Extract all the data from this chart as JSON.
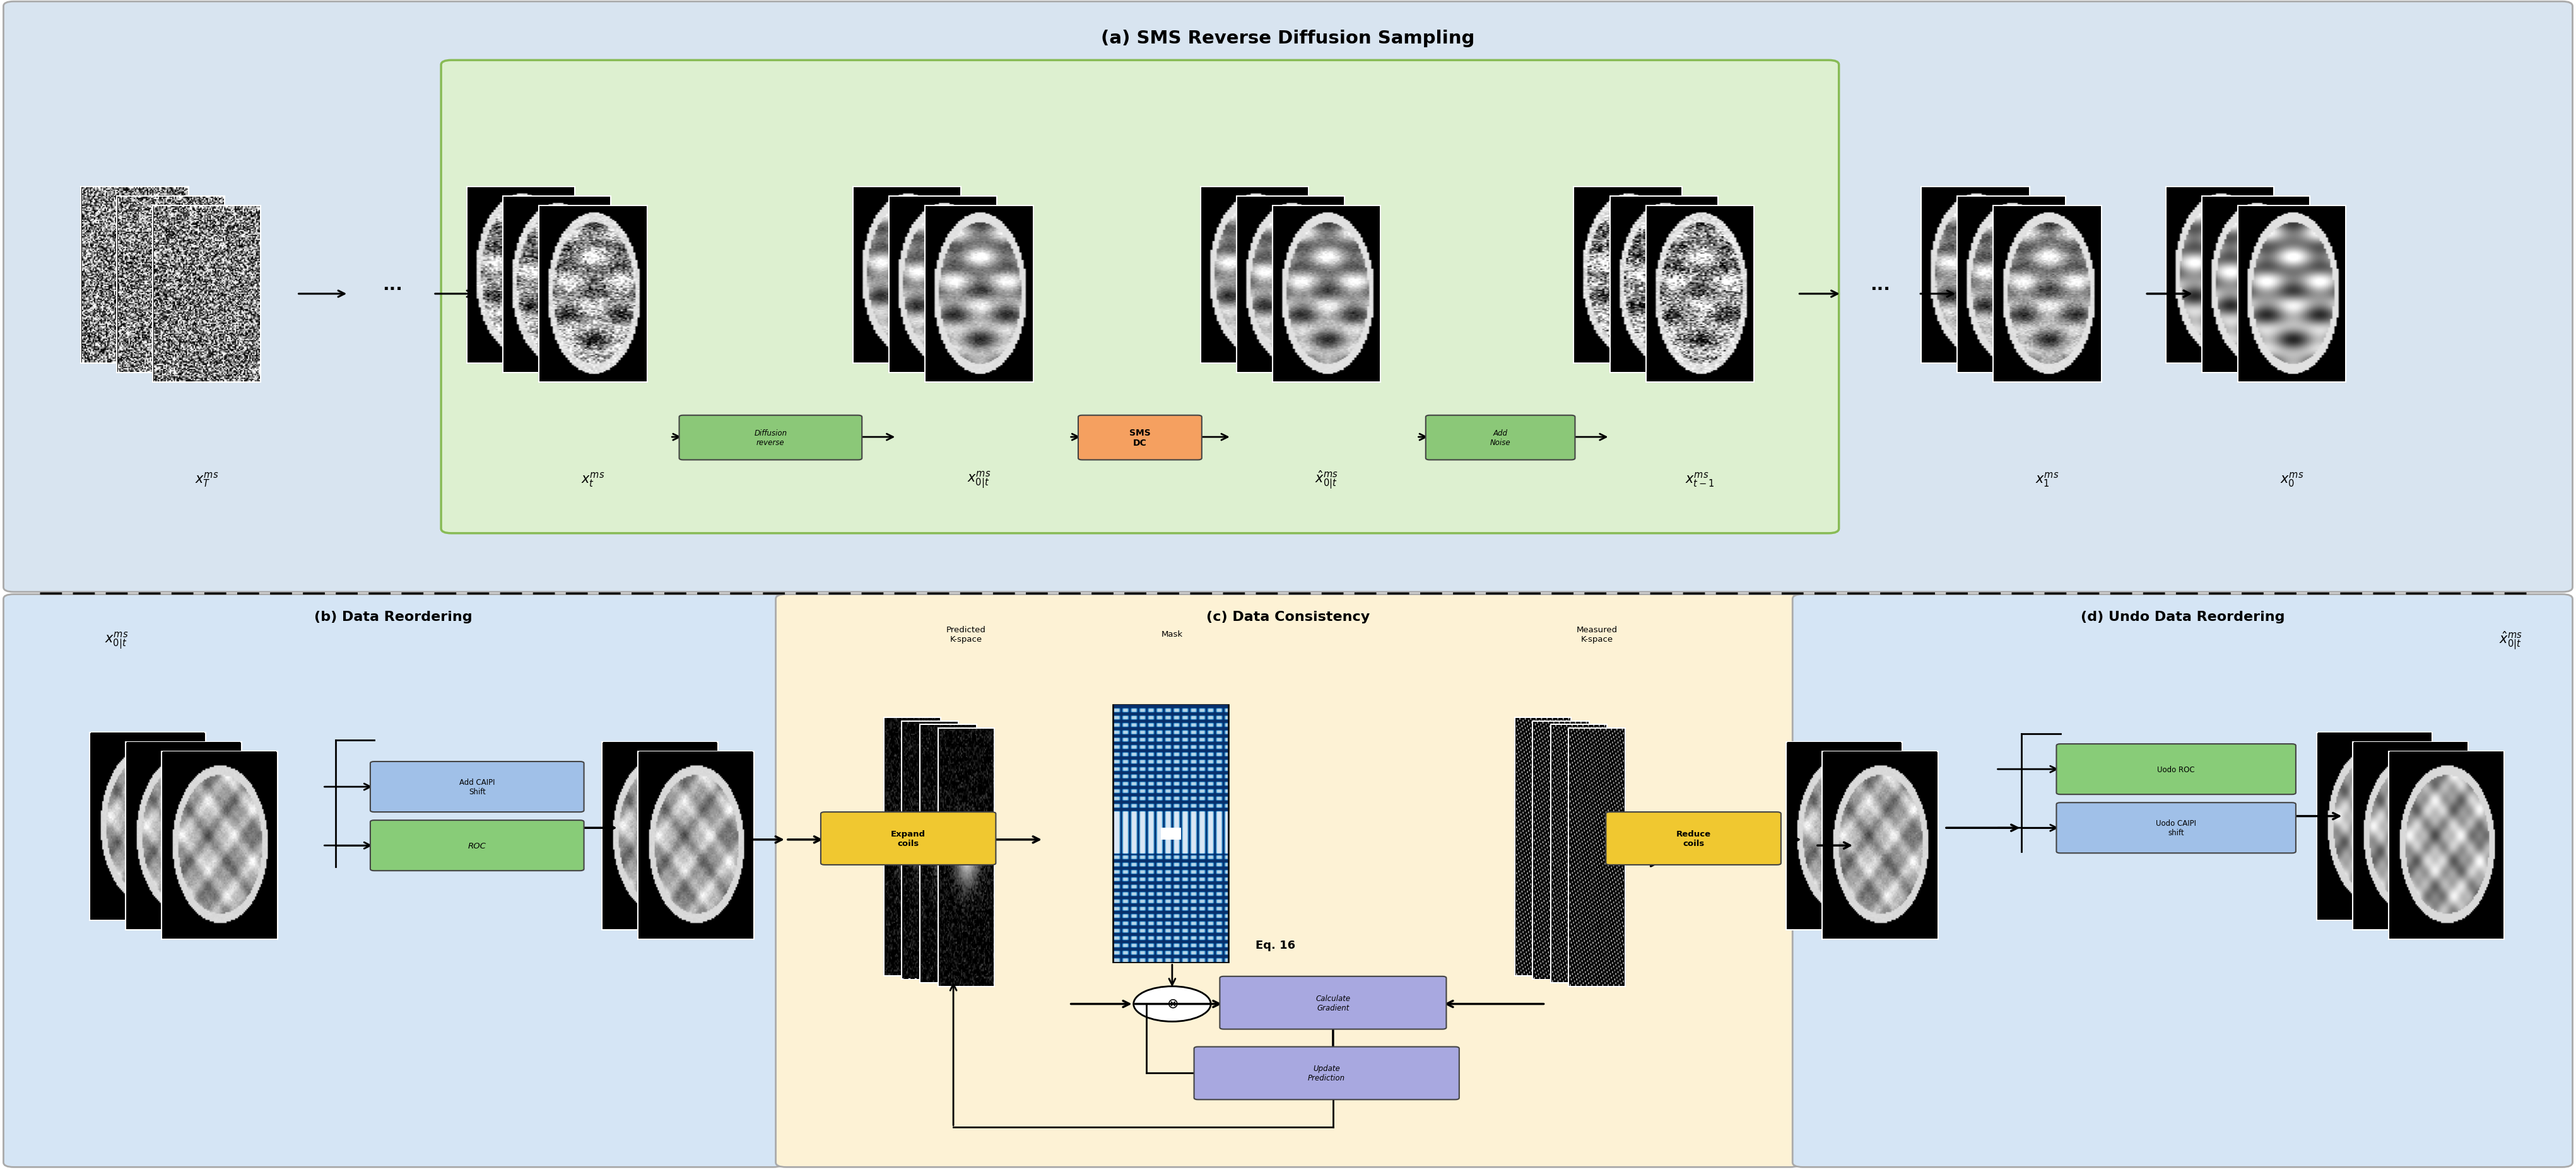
{
  "fig_width": 40.83,
  "fig_height": 18.65,
  "bg_top": "#d8e4f0",
  "bg_b": "#d5e5f5",
  "bg_c": "#fdf2d5",
  "bg_d": "#d5e5f5",
  "bg_green": "#ddf0d0",
  "panel_a_title": "(a) SMS Reverse Diffusion Sampling",
  "panel_b_title": "(b) Data Reordering",
  "panel_c_title": "(c) Data Consistency",
  "panel_d_title": "(d) Undo Data Reordering",
  "label_xT": "$x_T^{ms}$",
  "label_xt": "$x_t^{ms}$",
  "label_x0t": "$x_{0|t}^{ms}$",
  "label_xhat0t": "$\\hat{x}_{0|t}^{ms}$",
  "label_xt1": "$x_{t-1}^{ms}$",
  "label_x1": "$x_1^{ms}$",
  "label_x0": "$x_0^{ms}$",
  "label_x0t_b": "$x_{0|t}^{ms}$",
  "label_xhat0t_d": "$\\hat{x}_{0|t}^{ms}$",
  "col_diffrev": "#8bc878",
  "col_smsdc": "#f5a060",
  "col_addnoise": "#8bc878",
  "col_caipi": "#a0c0e8",
  "col_roc": "#88cc78",
  "col_expand": "#f0c830",
  "col_calcgrad": "#a8a8e0",
  "col_updatepred": "#a8a8e0",
  "col_reduce": "#f0c830",
  "col_undoroc": "#88cc78",
  "col_undocaipi": "#a0c0e8",
  "txt_diffrev": "Diffusion\nreverse",
  "txt_smsdc": "SMS\nDC",
  "txt_addnoise": "Add\nNoise",
  "txt_caipi": "Add CAIPI\nShift",
  "txt_roc": "ROC",
  "txt_expand": "Expand\ncoils",
  "txt_calcgrad": "Calculate\nGradient",
  "txt_updatepred": "Update\nPrediction",
  "txt_reduce": "Reduce\ncoils",
  "txt_undoroc": "Uodo ROC",
  "txt_undocaipi": "Uodo CAIPI\nshift",
  "txt_eq16": "Eq. 16",
  "txt_predicted": "Predicted\nK-space",
  "txt_mask": "Mask",
  "txt_measured": "Measured\nK-space"
}
